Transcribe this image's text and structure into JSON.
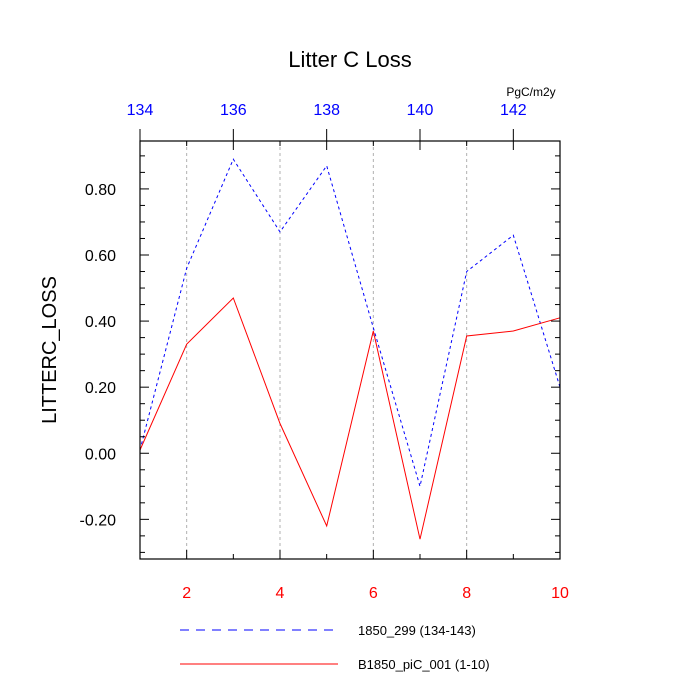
{
  "chart_data": {
    "type": "line",
    "title": "Litter C Loss",
    "units": "PgC/m2y",
    "ylabel": "LITTERC_LOSS",
    "ylim": [
      -0.32,
      0.945
    ],
    "yticks": [
      -0.2,
      0.0,
      0.2,
      0.4,
      0.6,
      0.8
    ],
    "ytick_labels": [
      "-0.20",
      "0.00",
      "0.20",
      "0.40",
      "0.60",
      "0.80"
    ],
    "bottom_axis": {
      "range": [
        1,
        10
      ],
      "ticks": [
        2,
        4,
        6,
        8,
        10
      ],
      "tick_labels": [
        "2",
        "4",
        "6",
        "8",
        "10"
      ],
      "color": "#ff0000"
    },
    "top_axis": {
      "range": [
        134,
        143
      ],
      "ticks": [
        134,
        136,
        138,
        140,
        142
      ],
      "tick_labels": [
        "134",
        "136",
        "138",
        "140",
        "142"
      ],
      "color": "#0000ff"
    },
    "grid": "vertical dashed",
    "legend_position": "bottom",
    "series": [
      {
        "name": "1850_299 (134-143)",
        "axis": "top",
        "color": "#0000ff",
        "style": "dashed",
        "x": [
          134,
          135,
          136,
          137,
          138,
          139,
          140,
          141,
          142,
          143
        ],
        "values": [
          0.01,
          0.56,
          0.89,
          0.67,
          0.87,
          0.38,
          -0.1,
          0.55,
          0.66,
          0.2
        ]
      },
      {
        "name": "B1850_piC_001 (1-10)",
        "axis": "bottom",
        "color": "#ff0000",
        "style": "solid",
        "x": [
          1,
          2,
          3,
          4,
          5,
          6,
          7,
          8,
          9,
          10
        ],
        "values": [
          0.01,
          0.33,
          0.47,
          0.09,
          -0.22,
          0.37,
          -0.26,
          0.355,
          0.37,
          0.41
        ]
      }
    ]
  }
}
